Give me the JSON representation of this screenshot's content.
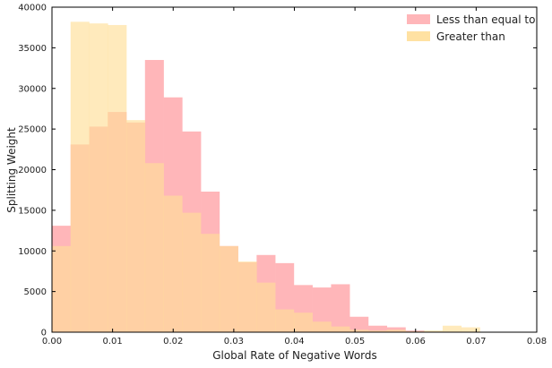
{
  "chart_data": {
    "type": "bar",
    "subtype": "overlaid-histogram",
    "xlabel": "Global Rate of Negative Words",
    "ylabel": "Splitting Weight",
    "xlim": [
      0.0,
      0.08
    ],
    "ylim": [
      0,
      40000
    ],
    "x_ticks": [
      "0.00",
      "0.01",
      "0.02",
      "0.03",
      "0.04",
      "0.05",
      "0.06",
      "0.07",
      "0.08"
    ],
    "y_ticks": [
      "0",
      "5000",
      "10000",
      "15000",
      "20000",
      "25000",
      "30000",
      "35000",
      "40000"
    ],
    "grid": false,
    "legend_position": "top-right",
    "bin_edges": [
      0.0,
      0.00307,
      0.00614,
      0.00921,
      0.01228,
      0.01535,
      0.01842,
      0.02149,
      0.02456,
      0.02763,
      0.0307,
      0.03377,
      0.03684,
      0.03991,
      0.04298,
      0.04605,
      0.04912,
      0.05219,
      0.05526,
      0.05833,
      0.0614,
      0.06447,
      0.06754,
      0.07061,
      0.07368
    ],
    "series": [
      {
        "name": "Less than equal to",
        "color": "#ffb6b9",
        "values": [
          13100,
          23100,
          25300,
          27100,
          25800,
          33500,
          28900,
          24700,
          17300,
          10600,
          8600,
          9500,
          8500,
          5800,
          5500,
          5900,
          1900,
          800,
          600,
          200,
          0,
          0,
          0,
          0
        ]
      },
      {
        "name": "Greater than",
        "color": "#ffde98",
        "values": [
          10600,
          38200,
          38000,
          37800,
          26100,
          20800,
          16800,
          14700,
          12100,
          10600,
          8700,
          6100,
          2800,
          2400,
          1300,
          700,
          300,
          200,
          300,
          100,
          200,
          800,
          600,
          0
        ]
      }
    ]
  }
}
